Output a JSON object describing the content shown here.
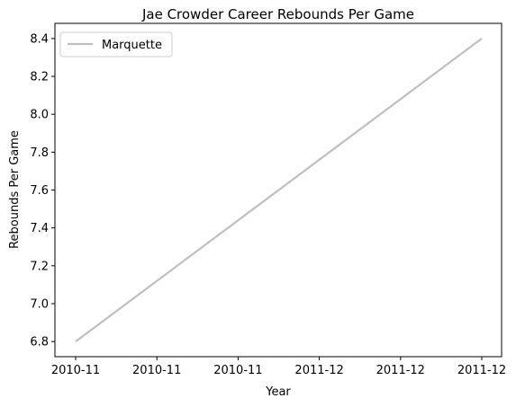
{
  "chart_data": {
    "type": "line",
    "title": "Jae Crowder Career Rebounds Per Game",
    "xlabel": "Year",
    "ylabel": "Rebounds Per Game",
    "x_tick_labels": [
      "2010-11",
      "2010-11",
      "2010-11",
      "2011-12",
      "2011-12",
      "2011-12"
    ],
    "y_ticks": [
      6.8,
      7.0,
      7.2,
      7.4,
      7.6,
      7.8,
      8.0,
      8.2,
      8.4
    ],
    "ylim": [
      6.72,
      8.48
    ],
    "grid": false,
    "legend_position": "top-left",
    "series": [
      {
        "name": "Marquette",
        "color": "#bfbfbf",
        "x": [
          "2010-11",
          "2011-12"
        ],
        "values": [
          6.8,
          8.4
        ]
      }
    ]
  }
}
